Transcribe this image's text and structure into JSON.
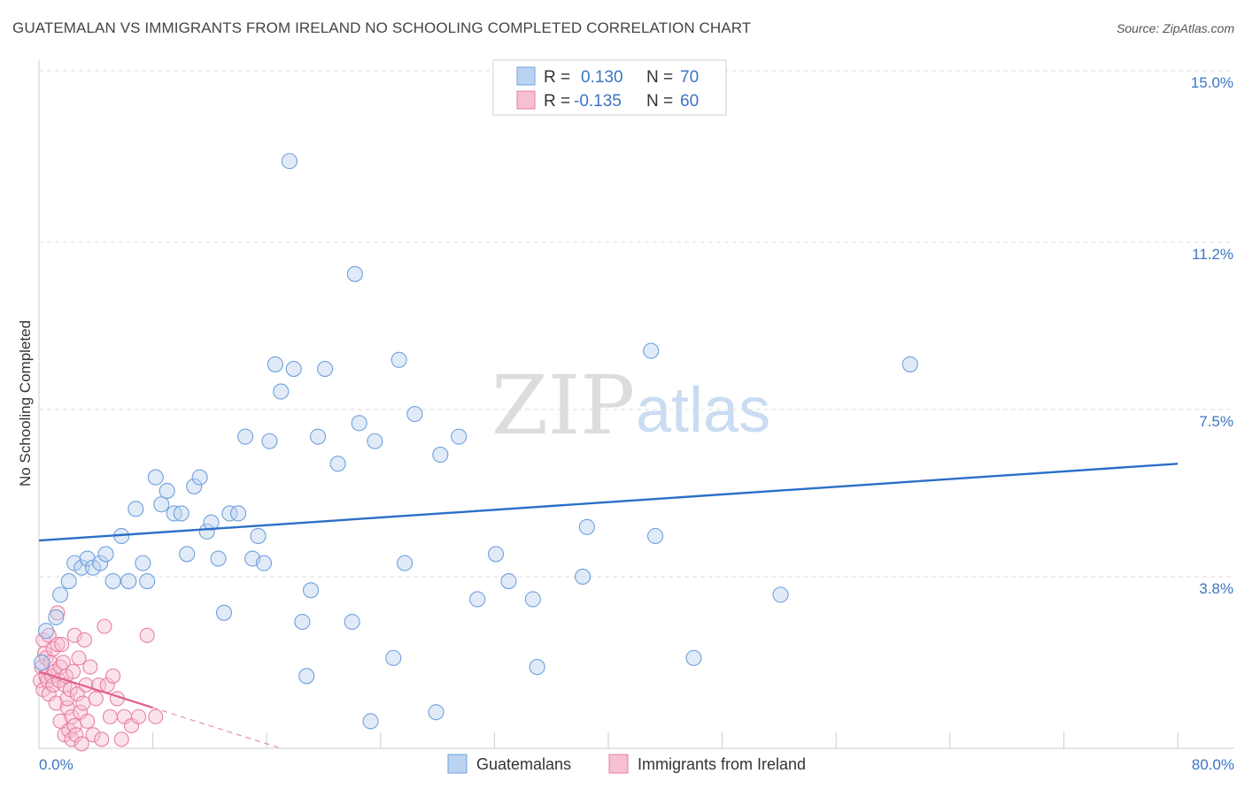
{
  "title": "GUATEMALAN VS IMMIGRANTS FROM IRELAND NO SCHOOLING COMPLETED CORRELATION CHART",
  "source": "Source: ZipAtlas.com",
  "watermark": {
    "zip": "ZIP",
    "atlas": "atlas"
  },
  "colors": {
    "blue": "#6fa0dc",
    "blue_fill": "#bcd3f0",
    "blue_line": "#2b6fc7",
    "pink": "#e87fa3",
    "pink_fill": "#f6c0d2",
    "pink_line": "#e0608e",
    "tick": "#3b75c4",
    "grid": "#dddddd"
  },
  "legend_box": {
    "rows": [
      {
        "r_label": "R =",
        "r_value": "0.130",
        "n_label": "N =",
        "n_value": "70"
      },
      {
        "r_label": "R =",
        "r_value": "-0.135",
        "n_label": "N =",
        "n_value": "60"
      }
    ]
  },
  "chart_data": {
    "type": "scatter",
    "title": "GUATEMALAN VS IMMIGRANTS FROM IRELAND NO SCHOOLING COMPLETED CORRELATION CHART",
    "xlabel": "",
    "ylabel": "No Schooling Completed",
    "xlim": [
      0,
      80
    ],
    "ylim": [
      0,
      15.0
    ],
    "x_tick_labels": [
      "0.0%",
      "80.0%"
    ],
    "y_ticks": [
      3.8,
      7.5,
      11.2,
      15.0
    ],
    "y_tick_labels": [
      "3.8%",
      "7.5%",
      "11.2%",
      "15.0%"
    ],
    "grid": true,
    "legend": [
      "Guatemalans",
      "Immigrants from Ireland"
    ],
    "series": [
      {
        "name": "Guatemalans",
        "r": 0.13,
        "n": 70,
        "trend": {
          "x": [
            0,
            80
          ],
          "y": [
            4.6,
            6.3
          ]
        },
        "points": [
          [
            0.5,
            2.6
          ],
          [
            1.2,
            2.9
          ],
          [
            1.5,
            3.4
          ],
          [
            2.1,
            3.7
          ],
          [
            2.5,
            4.1
          ],
          [
            3.0,
            4.0
          ],
          [
            3.4,
            4.2
          ],
          [
            3.8,
            4.0
          ],
          [
            4.3,
            4.1
          ],
          [
            4.7,
            4.3
          ],
          [
            5.2,
            3.7
          ],
          [
            5.8,
            4.7
          ],
          [
            6.3,
            3.7
          ],
          [
            6.8,
            5.3
          ],
          [
            7.3,
            4.1
          ],
          [
            7.6,
            3.7
          ],
          [
            8.2,
            6.0
          ],
          [
            8.6,
            5.4
          ],
          [
            9.0,
            5.7
          ],
          [
            9.5,
            5.2
          ],
          [
            10.0,
            5.2
          ],
          [
            10.4,
            4.3
          ],
          [
            10.9,
            5.8
          ],
          [
            11.3,
            6.0
          ],
          [
            11.8,
            4.8
          ],
          [
            12.1,
            5.0
          ],
          [
            12.6,
            4.2
          ],
          [
            13.0,
            3.0
          ],
          [
            13.4,
            5.2
          ],
          [
            14.0,
            5.2
          ],
          [
            14.5,
            6.9
          ],
          [
            15.0,
            4.2
          ],
          [
            15.4,
            4.7
          ],
          [
            15.8,
            4.1
          ],
          [
            16.2,
            6.8
          ],
          [
            16.6,
            8.5
          ],
          [
            17.0,
            7.9
          ],
          [
            17.6,
            13.0
          ],
          [
            17.9,
            8.4
          ],
          [
            18.5,
            2.8
          ],
          [
            18.8,
            1.6
          ],
          [
            19.1,
            3.5
          ],
          [
            19.6,
            6.9
          ],
          [
            20.1,
            8.4
          ],
          [
            21.0,
            6.3
          ],
          [
            22.0,
            2.8
          ],
          [
            22.2,
            10.5
          ],
          [
            22.5,
            7.2
          ],
          [
            23.3,
            0.6
          ],
          [
            23.6,
            6.8
          ],
          [
            24.9,
            2.0
          ],
          [
            25.3,
            8.6
          ],
          [
            25.7,
            4.1
          ],
          [
            26.4,
            7.4
          ],
          [
            27.9,
            0.8
          ],
          [
            28.2,
            6.5
          ],
          [
            29.5,
            6.9
          ],
          [
            30.8,
            3.3
          ],
          [
            32.1,
            4.3
          ],
          [
            33.0,
            3.7
          ],
          [
            34.7,
            3.3
          ],
          [
            35.0,
            1.8
          ],
          [
            38.2,
            3.8
          ],
          [
            38.5,
            4.9
          ],
          [
            43.0,
            8.8
          ],
          [
            43.3,
            4.7
          ],
          [
            46.0,
            2.0
          ],
          [
            52.1,
            3.4
          ],
          [
            61.2,
            8.5
          ],
          [
            0.2,
            1.9
          ]
        ]
      },
      {
        "name": "Immigrants from Ireland",
        "r": -0.135,
        "n": 60,
        "trend": {
          "x": [
            0,
            8
          ],
          "y": [
            1.7,
            0.9
          ]
        },
        "trend_dashed_extension": {
          "x": [
            8,
            20
          ],
          "y": [
            0.9,
            -0.3
          ]
        },
        "points": [
          [
            0.1,
            1.5
          ],
          [
            0.2,
            1.8
          ],
          [
            0.3,
            2.4
          ],
          [
            0.3,
            1.3
          ],
          [
            0.4,
            2.1
          ],
          [
            0.5,
            1.6
          ],
          [
            0.5,
            2.0
          ],
          [
            0.6,
            1.5
          ],
          [
            0.7,
            2.5
          ],
          [
            0.7,
            1.2
          ],
          [
            0.8,
            1.9
          ],
          [
            0.9,
            1.6
          ],
          [
            1.0,
            1.4
          ],
          [
            1.0,
            2.2
          ],
          [
            1.1,
            1.7
          ],
          [
            1.2,
            1.0
          ],
          [
            1.3,
            2.3
          ],
          [
            1.3,
            3.0
          ],
          [
            1.4,
            1.5
          ],
          [
            1.5,
            1.8
          ],
          [
            1.5,
            0.6
          ],
          [
            1.6,
            2.3
          ],
          [
            1.7,
            1.9
          ],
          [
            1.8,
            1.4
          ],
          [
            1.8,
            0.3
          ],
          [
            1.9,
            1.6
          ],
          [
            2.0,
            0.9
          ],
          [
            2.0,
            1.1
          ],
          [
            2.1,
            0.4
          ],
          [
            2.2,
            1.3
          ],
          [
            2.3,
            0.7
          ],
          [
            2.3,
            0.2
          ],
          [
            2.4,
            1.7
          ],
          [
            2.5,
            2.5
          ],
          [
            2.5,
            0.5
          ],
          [
            2.6,
            0.3
          ],
          [
            2.7,
            1.2
          ],
          [
            2.8,
            2.0
          ],
          [
            2.9,
            0.8
          ],
          [
            3.0,
            0.1
          ],
          [
            3.1,
            1.0
          ],
          [
            3.2,
            2.4
          ],
          [
            3.3,
            1.4
          ],
          [
            3.4,
            0.6
          ],
          [
            3.6,
            1.8
          ],
          [
            3.8,
            0.3
          ],
          [
            4.0,
            1.1
          ],
          [
            4.2,
            1.4
          ],
          [
            4.4,
            0.2
          ],
          [
            4.6,
            2.7
          ],
          [
            4.8,
            1.4
          ],
          [
            5.0,
            0.7
          ],
          [
            5.2,
            1.6
          ],
          [
            5.5,
            1.1
          ],
          [
            5.8,
            0.2
          ],
          [
            6.0,
            0.7
          ],
          [
            6.5,
            0.5
          ],
          [
            7.0,
            0.7
          ],
          [
            7.6,
            2.5
          ],
          [
            8.2,
            0.7
          ]
        ]
      }
    ]
  }
}
